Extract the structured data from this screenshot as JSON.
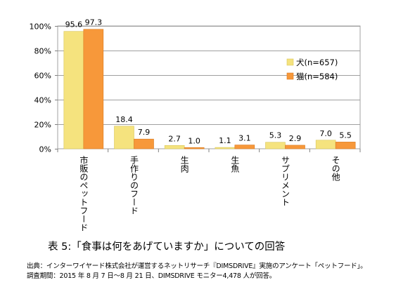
{
  "chart_data": {
    "type": "bar",
    "categories": [
      "市販のペットフード",
      "手作りのフード",
      "生肉",
      "生魚",
      "サプリメント",
      "その他"
    ],
    "series": [
      {
        "name": "犬(n=657)",
        "values": [
          95.6,
          18.4,
          2.7,
          1.1,
          5.3,
          7.0
        ],
        "value_labels": [
          "95.6",
          "18.4",
          "2.7",
          "1.1",
          "5.3",
          "7.0"
        ],
        "color": "#f5e37e"
      },
      {
        "name": "猫(n=584)",
        "values": [
          97.3,
          7.9,
          1.0,
          3.1,
          2.9,
          5.5
        ],
        "value_labels": [
          "97.3",
          "7.9",
          "1.0",
          "3.1",
          "2.9",
          "5.5"
        ],
        "color": "#f7983a"
      }
    ],
    "ylim": [
      0,
      100
    ],
    "yticks": [
      0,
      20,
      40,
      60,
      80,
      100
    ],
    "ytick_labels": [
      "0%",
      "20%",
      "40%",
      "60%",
      "80%",
      "100%"
    ],
    "grid": true,
    "legend_position": "right"
  },
  "caption": "表 5:「食事は何をあげていますか」についての回答",
  "source_line1": "出典：インターワイヤード株式会社が運営するネットリサーチ『DIMSDRIVE』実施のアンケート「ペットフード」。",
  "source_line2": "調査期間：2015 年 8 月 7 日～8 月 21 日、DIMSDRIVE モニター4,478 人が回答。"
}
